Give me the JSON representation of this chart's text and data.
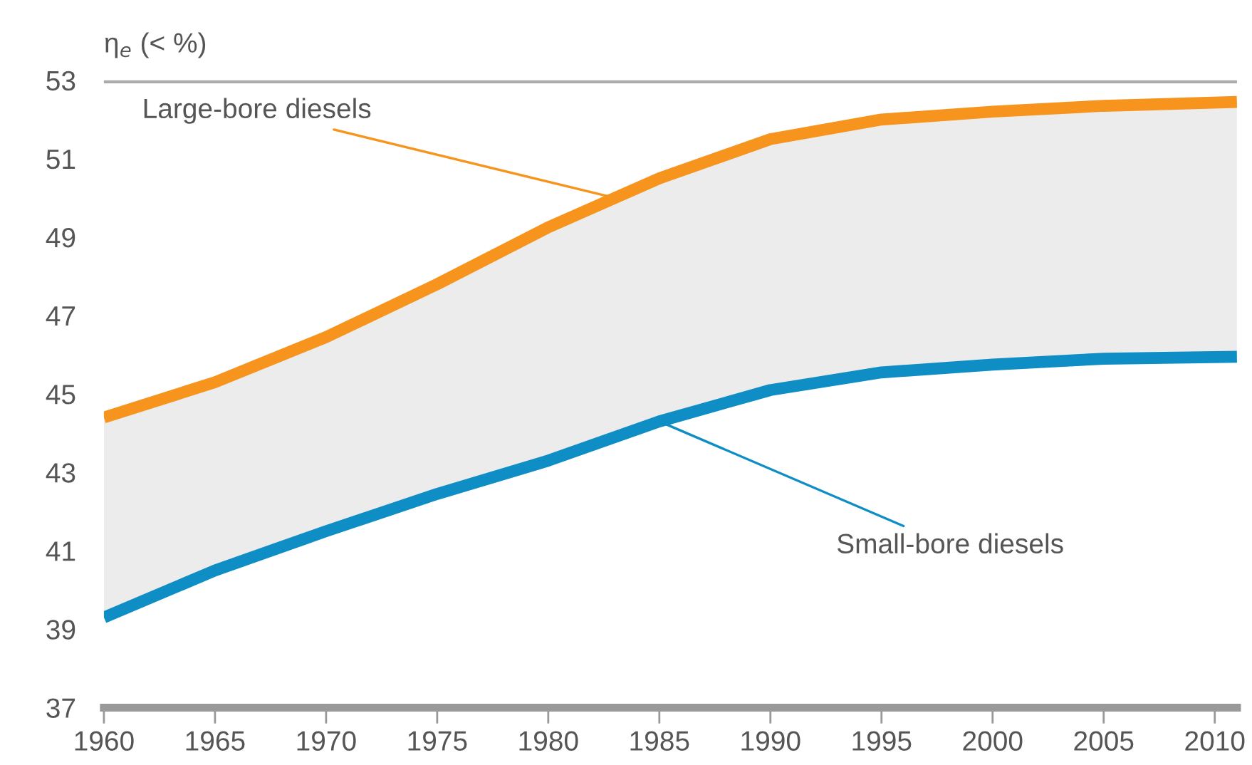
{
  "chart_data": {
    "type": "line",
    "ylabel": "η$_{e}$ (< %)",
    "x": [
      1960,
      1965,
      1970,
      1975,
      1980,
      1985,
      1990,
      1995,
      2000,
      2005,
      2011
    ],
    "series": [
      {
        "color": "#f7941d",
        "values": [
          44.4,
          45.3,
          46.45,
          47.8,
          49.25,
          50.5,
          51.5,
          52.0,
          52.2,
          52.35,
          52.45
        ],
        "lower": [
          39.3,
          40.5,
          41.5,
          42.45,
          43.3,
          44.3,
          45.1,
          45.55,
          45.75,
          45.9,
          45.95
        ],
        "upper": [
          44.4,
          45.3,
          46.45,
          47.8,
          49.25,
          50.5,
          51.5,
          52.0,
          52.2,
          52.35,
          52.45
        ]
      },
      {
        "color": "#0f8ec6",
        "values": [
          39.3,
          40.5,
          41.5,
          42.45,
          43.3,
          44.3,
          45.1,
          45.55,
          45.75,
          45.9,
          45.95
        ]
      }
    ],
    "annotations": [
      {
        "text": "Large-bore diesels",
        "x": 1983,
        "y": 50.0
      },
      {
        "text": "Small-bore diesels",
        "x": 1985,
        "y": 44.3
      }
    ],
    "xlim": [
      1960,
      2011
    ],
    "xticks": [
      1960,
      1965,
      1970,
      1975,
      1980,
      1985,
      1990,
      1995,
      2000,
      2005,
      2010
    ],
    "ylim": [
      37,
      53
    ],
    "yticks": [
      37,
      39,
      41,
      43,
      45,
      47,
      49,
      51,
      53
    ],
    "ref_lines": [
      {
        "axis": "y",
        "value": 53,
        "color": "#aaaaaa"
      }
    ],
    "grid": false,
    "legend": false,
    "line_style": "solid",
    "marker": "none"
  }
}
